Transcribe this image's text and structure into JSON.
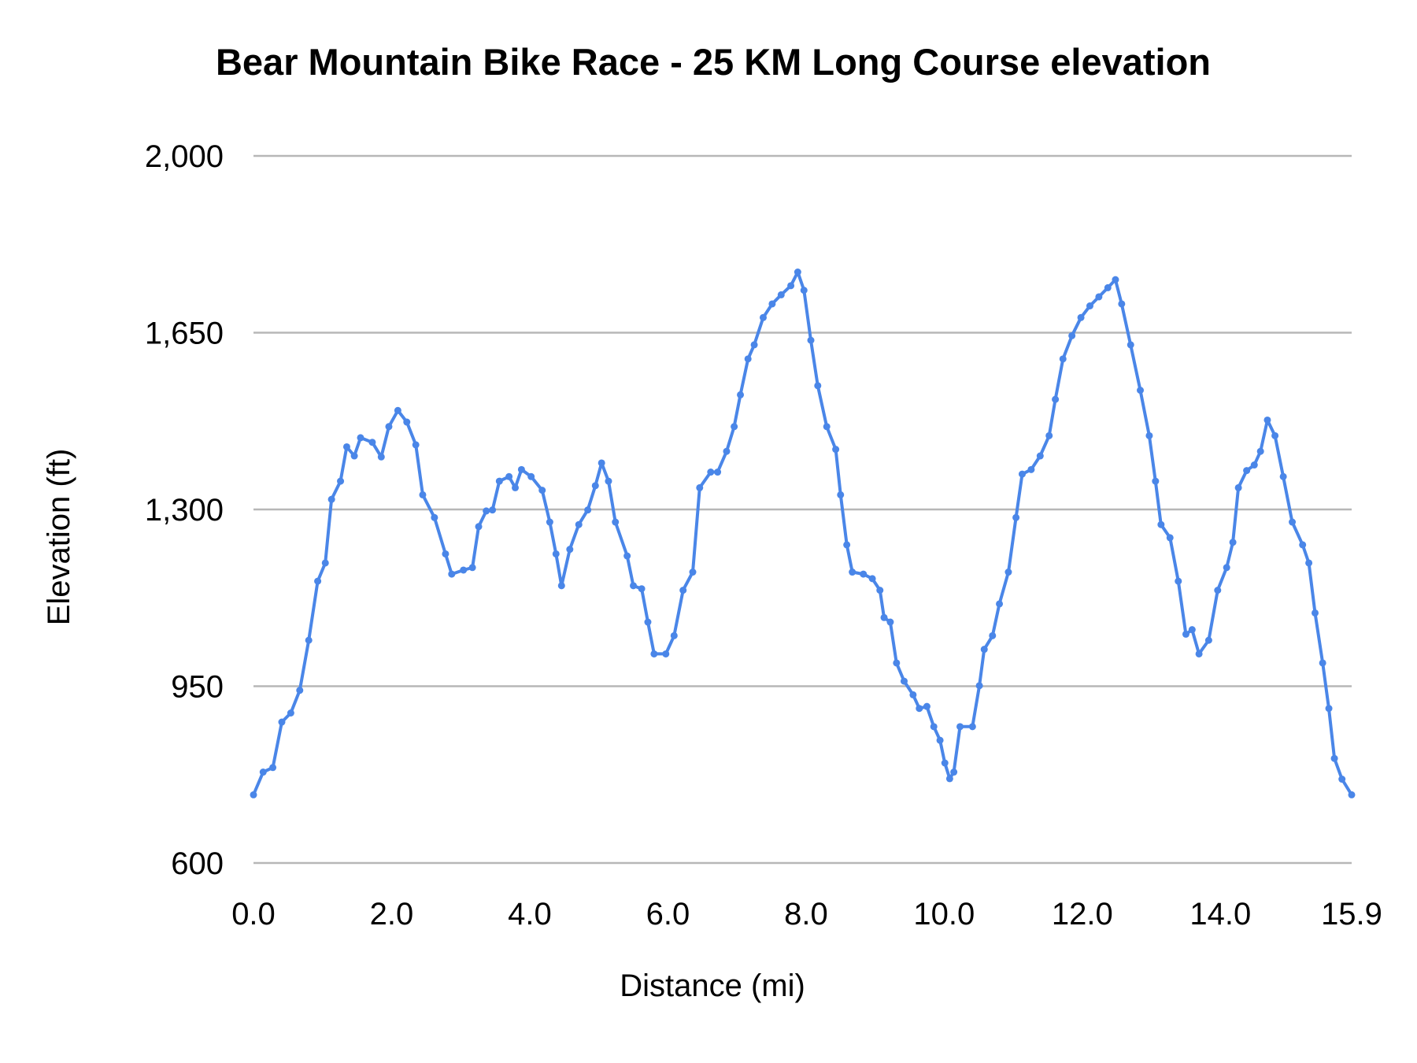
{
  "chart_data": {
    "type": "line",
    "title": "Bear Mountain Bike Race - 25 KM Long Course elevation",
    "xlabel": "Distance (mi)",
    "ylabel": "Elevation (ft)",
    "xlim": [
      0,
      15.9
    ],
    "ylim": [
      600,
      2000
    ],
    "x_ticks": [
      "0.0",
      "2.0",
      "4.0",
      "6.0",
      "8.0",
      "10.0",
      "12.0",
      "14.0",
      "15.9"
    ],
    "x_tick_values": [
      0,
      2,
      4,
      6,
      8,
      10,
      12,
      14,
      15.9
    ],
    "y_ticks": [
      "600",
      "950",
      "1,300",
      "1,650",
      "2,000"
    ],
    "y_tick_values": [
      600,
      950,
      1300,
      1650,
      2000
    ],
    "grid": true,
    "legend": "none",
    "color": "#4a86e8",
    "markers": true,
    "series": [
      {
        "x": [
          0.0,
          0.14,
          0.28,
          0.41,
          0.54,
          0.67,
          0.8,
          0.93,
          1.04,
          1.13,
          1.26,
          1.35,
          1.46,
          1.55,
          1.72,
          1.85,
          1.96,
          2.09,
          2.22,
          2.35,
          2.45,
          2.62,
          2.78,
          2.87,
          3.04,
          3.17,
          3.26,
          3.37,
          3.46,
          3.56,
          3.7,
          3.79,
          3.88,
          4.02,
          4.18,
          4.29,
          4.38,
          4.46,
          4.58,
          4.71,
          4.84,
          4.95,
          5.04,
          5.14,
          5.24,
          5.41,
          5.5,
          5.62,
          5.71,
          5.8,
          5.97,
          6.09,
          6.22,
          6.36,
          6.46,
          6.62,
          6.72,
          6.85,
          6.96,
          7.05,
          7.16,
          7.25,
          7.38,
          7.51,
          7.64,
          7.78,
          7.88,
          7.97,
          8.07,
          8.17,
          8.3,
          8.43,
          8.5,
          8.59,
          8.67,
          8.83,
          8.96,
          9.07,
          9.13,
          9.22,
          9.31,
          9.42,
          9.55,
          9.64,
          9.75,
          9.85,
          9.94,
          10.01,
          10.08,
          10.14,
          10.23,
          10.41,
          10.51,
          10.58,
          10.7,
          10.8,
          10.93,
          11.04,
          11.13,
          11.26,
          11.39,
          11.52,
          11.61,
          11.72,
          11.85,
          11.98,
          12.11,
          12.24,
          12.37,
          12.48,
          12.57,
          12.7,
          12.84,
          12.97,
          13.06,
          13.14,
          13.27,
          13.39,
          13.5,
          13.59,
          13.69,
          13.83,
          13.96,
          14.09,
          14.18,
          14.26,
          14.38,
          14.49,
          14.58,
          14.68,
          14.79,
          14.91,
          15.04,
          15.19,
          15.28,
          15.37,
          15.48,
          15.57,
          15.65,
          15.76,
          15.9
        ],
        "y": [
          735,
          780,
          789,
          879,
          897,
          942,
          1041,
          1158,
          1194,
          1320,
          1356,
          1424,
          1406,
          1442,
          1433,
          1404,
          1464,
          1496,
          1473,
          1428,
          1329,
          1284,
          1212,
          1172,
          1180,
          1185,
          1266,
          1297,
          1299,
          1356,
          1365,
          1343,
          1379,
          1365,
          1338,
          1275,
          1212,
          1149,
          1221,
          1270,
          1299,
          1347,
          1392,
          1356,
          1275,
          1208,
          1149,
          1143,
          1077,
          1014,
          1014,
          1050,
          1140,
          1176,
          1343,
          1374,
          1374,
          1415,
          1464,
          1527,
          1598,
          1626,
          1680,
          1707,
          1725,
          1743,
          1770,
          1734,
          1635,
          1545,
          1464,
          1419,
          1329,
          1230,
          1176,
          1172,
          1163,
          1140,
          1086,
          1077,
          996,
          960,
          933,
          906,
          910,
          870,
          843,
          798,
          767,
          780,
          870,
          870,
          951,
          1023,
          1050,
          1113,
          1176,
          1284,
          1370,
          1379,
          1406,
          1446,
          1518,
          1598,
          1644,
          1680,
          1703,
          1721,
          1739,
          1755,
          1707,
          1626,
          1536,
          1446,
          1356,
          1270,
          1244,
          1158,
          1053,
          1062,
          1014,
          1041,
          1140,
          1185,
          1235,
          1343,
          1377,
          1388,
          1415,
          1477,
          1446,
          1365,
          1275,
          1230,
          1194,
          1095,
          996,
          906,
          807,
          766,
          735
        ]
      }
    ]
  }
}
